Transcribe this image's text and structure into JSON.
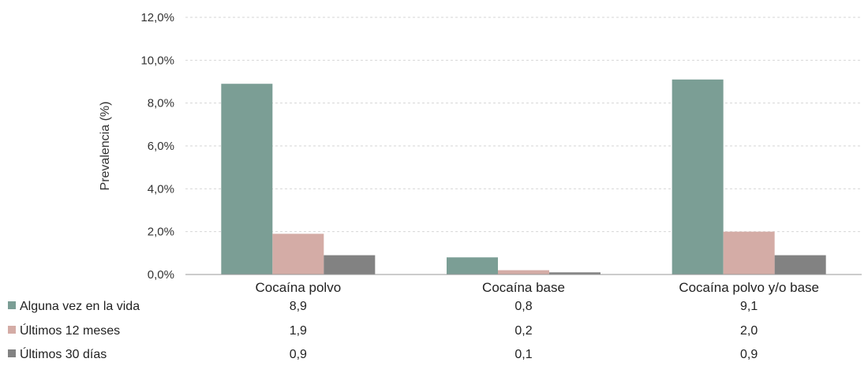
{
  "chart_data": {
    "type": "bar",
    "title": "",
    "xlabel": "",
    "ylabel": "Prevalencia (%)",
    "ylim": [
      0,
      12
    ],
    "y_ticks": [
      "0,0%",
      "2,0%",
      "4,0%",
      "6,0%",
      "8,0%",
      "10,0%",
      "12,0%"
    ],
    "categories": [
      "Cocaína polvo",
      "Cocaína base",
      "Cocaína polvo y/o base"
    ],
    "grid": true,
    "legend": "bottom-table",
    "series": [
      {
        "name": "Alguna vez en la vida",
        "color": "#7b9e95",
        "values": [
          8.9,
          0.8,
          9.1
        ],
        "labels": [
          "8,9",
          "0,8",
          "9,1"
        ]
      },
      {
        "name": "Últimos 12 meses",
        "color": "#d4aca6",
        "values": [
          1.9,
          0.2,
          2.0
        ],
        "labels": [
          "1,9",
          "0,2",
          "2,0"
        ]
      },
      {
        "name": "Últimos 30 días",
        "color": "#828282",
        "values": [
          0.9,
          0.1,
          0.9
        ],
        "labels": [
          "0,9",
          "0,1",
          "0,9"
        ]
      }
    ]
  }
}
